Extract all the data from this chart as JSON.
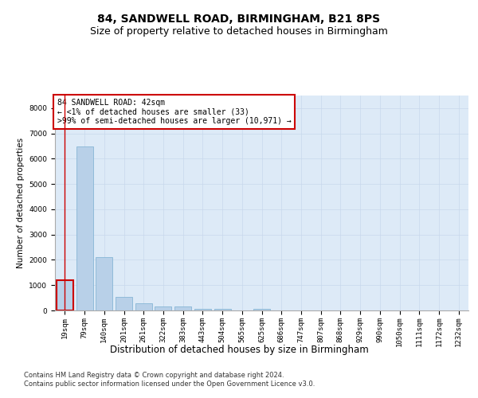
{
  "title1": "84, SANDWELL ROAD, BIRMINGHAM, B21 8PS",
  "title2": "Size of property relative to detached houses in Birmingham",
  "xlabel": "Distribution of detached houses by size in Birmingham",
  "ylabel": "Number of detached properties",
  "categories": [
    "19sqm",
    "79sqm",
    "140sqm",
    "201sqm",
    "261sqm",
    "322sqm",
    "383sqm",
    "443sqm",
    "504sqm",
    "565sqm",
    "625sqm",
    "686sqm",
    "747sqm",
    "807sqm",
    "868sqm",
    "929sqm",
    "990sqm",
    "1050sqm",
    "1111sqm",
    "1172sqm",
    "1232sqm"
  ],
  "values": [
    1200,
    6500,
    2100,
    550,
    280,
    170,
    150,
    60,
    60,
    0,
    55,
    0,
    0,
    0,
    0,
    0,
    0,
    0,
    0,
    0,
    0
  ],
  "bar_color": "#b8d0e8",
  "bar_edge_color": "#7aafd0",
  "highlight_bar_index": 0,
  "highlight_color": "#cc0000",
  "annotation_box_text": "84 SANDWELL ROAD: 42sqm\n← <1% of detached houses are smaller (33)\n>99% of semi-detached houses are larger (10,971) →",
  "annotation_box_color": "#cc0000",
  "ylim": [
    0,
    8500
  ],
  "yticks": [
    0,
    1000,
    2000,
    3000,
    4000,
    5000,
    6000,
    7000,
    8000
  ],
  "grid_color": "#c8d8ec",
  "background_color": "#ddeaf7",
  "fig_background": "#ffffff",
  "footnote": "Contains HM Land Registry data © Crown copyright and database right 2024.\nContains public sector information licensed under the Open Government Licence v3.0.",
  "title1_fontsize": 10,
  "title2_fontsize": 9,
  "xlabel_fontsize": 8.5,
  "ylabel_fontsize": 7.5,
  "annotation_fontsize": 7,
  "tick_fontsize": 6.5,
  "footnote_fontsize": 6
}
